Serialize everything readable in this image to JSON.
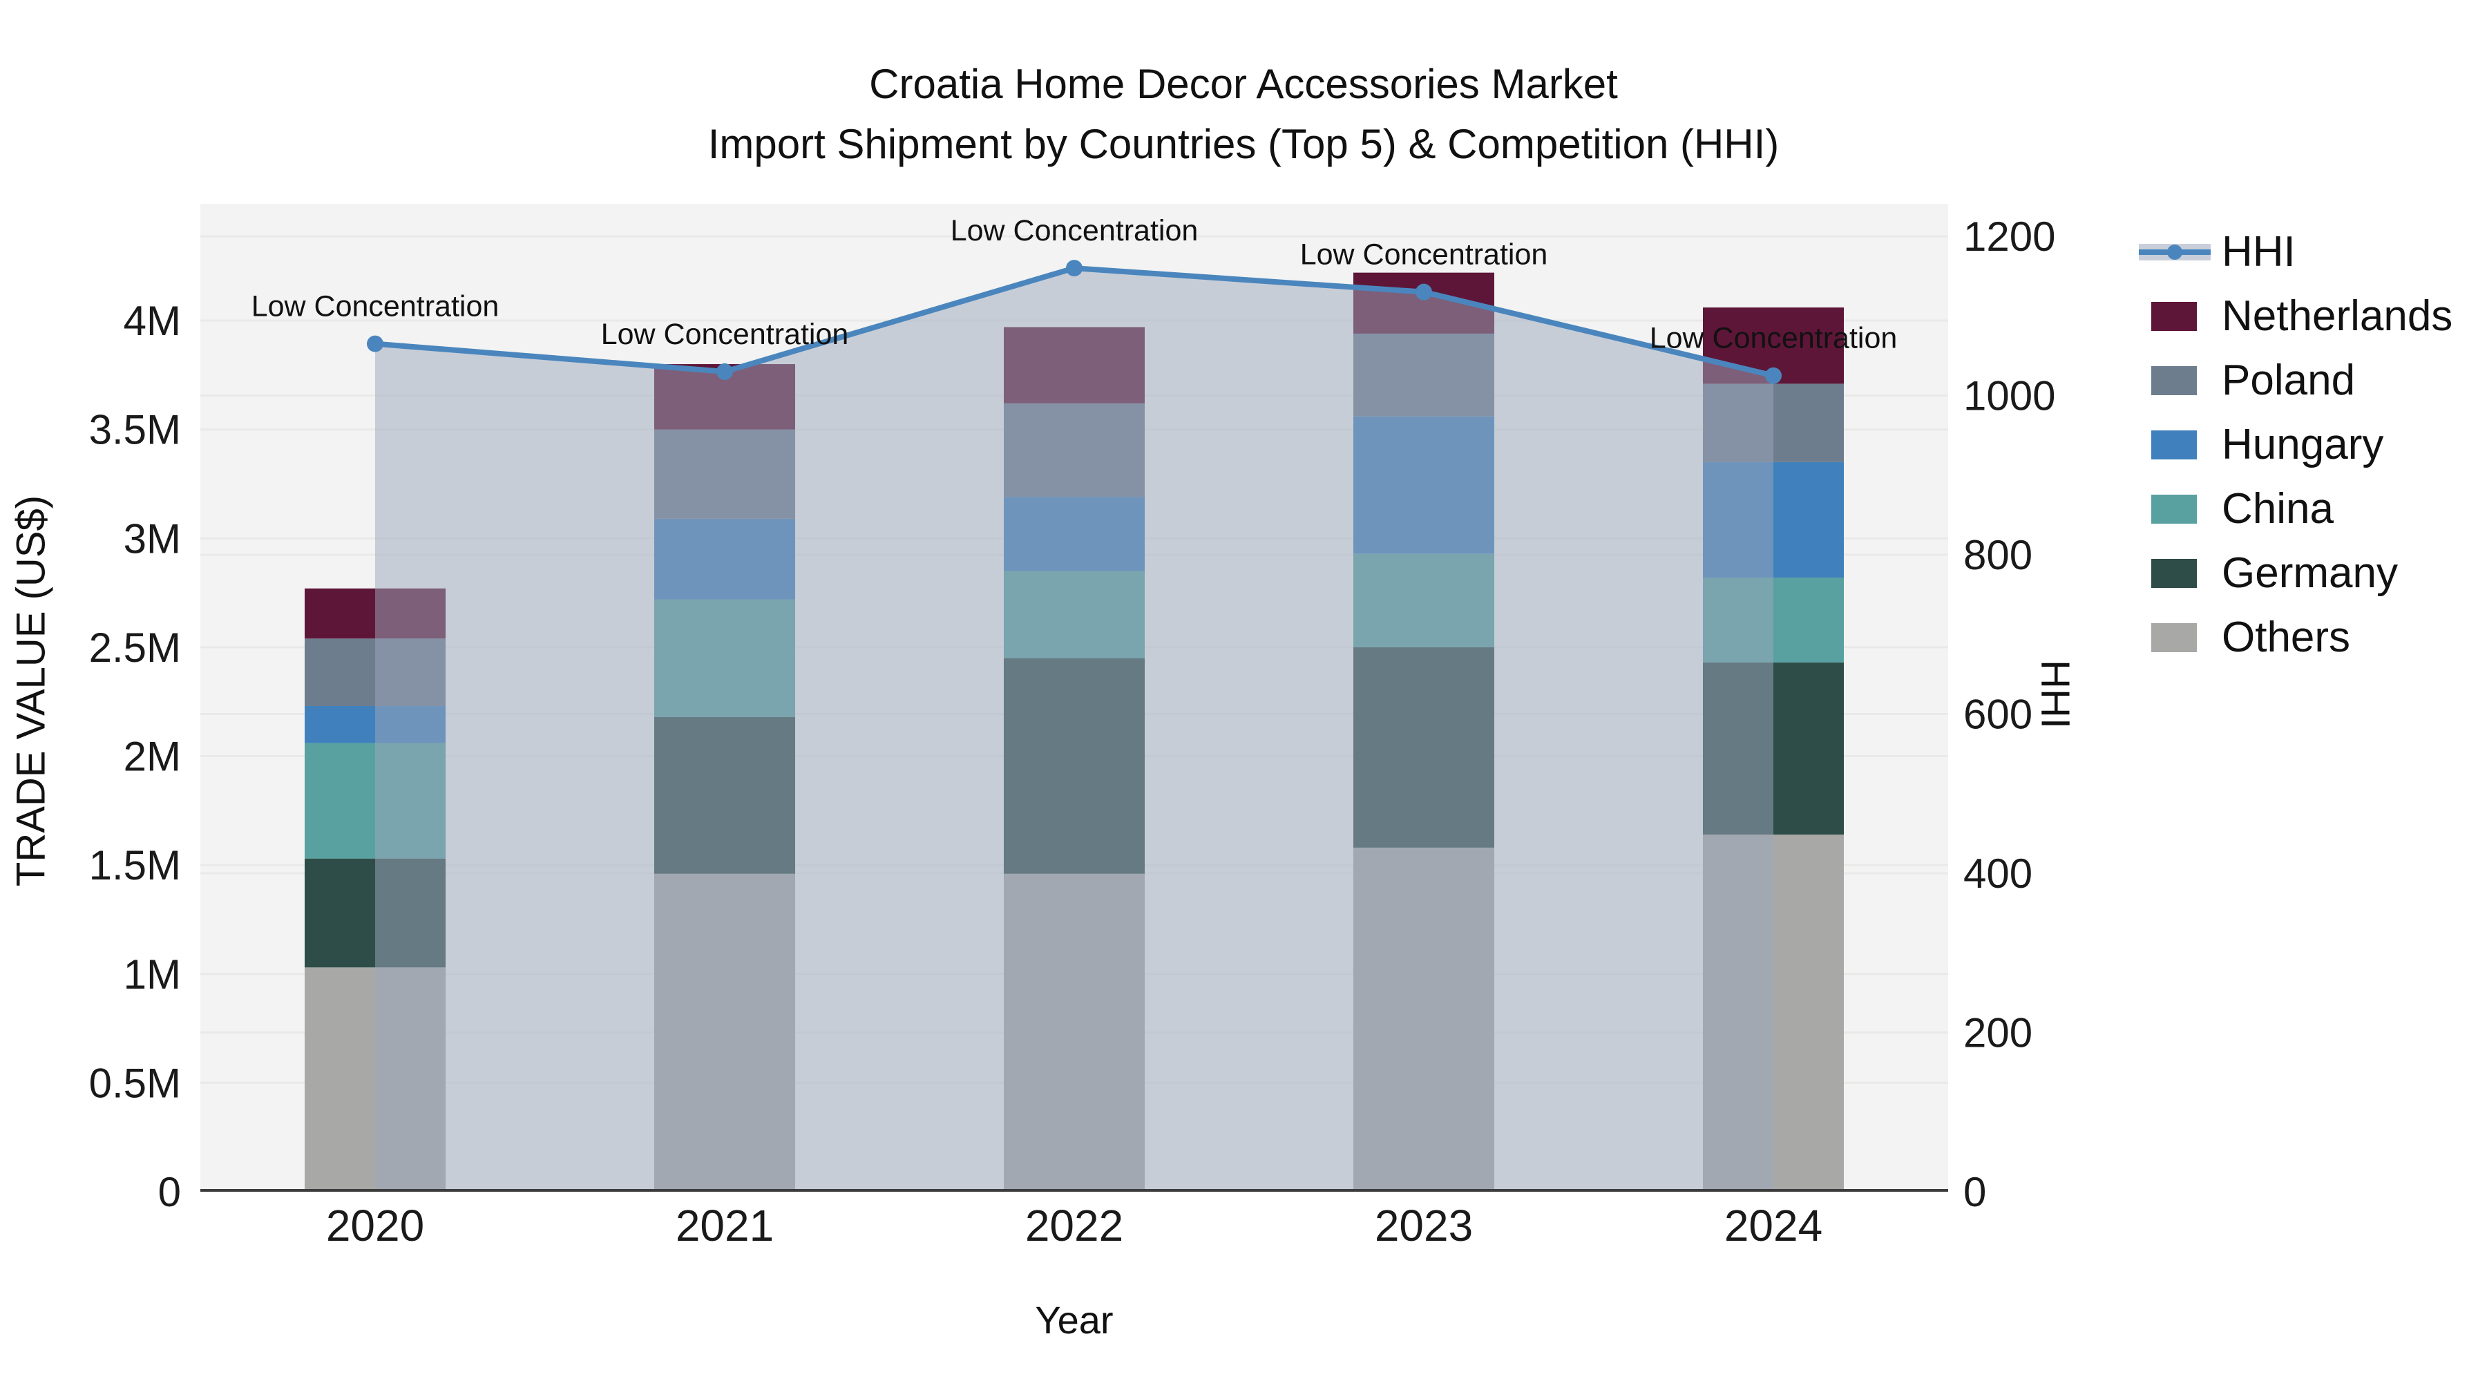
{
  "title": {
    "line1": "Croatia Home Decor Accessories Market",
    "line2": "Import Shipment by Countries (Top 5) & Competition (HHI)"
  },
  "x_axis": {
    "title": "Year",
    "labels": [
      "2020",
      "2021",
      "2022",
      "2023",
      "2024"
    ]
  },
  "y_axis_left": {
    "title": "TRADE VALUE (US$)",
    "ticks": [
      {
        "label": "0",
        "value": 0
      },
      {
        "label": "0.5M",
        "value": 0.5
      },
      {
        "label": "1M",
        "value": 1
      },
      {
        "label": "1.5M",
        "value": 1.5
      },
      {
        "label": "2M",
        "value": 2
      },
      {
        "label": "2.5M",
        "value": 2.5
      },
      {
        "label": "3M",
        "value": 3
      },
      {
        "label": "3.5M",
        "value": 3.5
      },
      {
        "label": "4M",
        "value": 4
      }
    ]
  },
  "y_axis_right": {
    "title": "HHI",
    "ticks": [
      {
        "label": "0",
        "value": 0
      },
      {
        "label": "200",
        "value": 200
      },
      {
        "label": "400",
        "value": 400
      },
      {
        "label": "600",
        "value": 600
      },
      {
        "label": "800",
        "value": 800
      },
      {
        "label": "1000",
        "value": 1000
      },
      {
        "label": "1200",
        "value": 1200
      }
    ]
  },
  "legend": {
    "items": [
      {
        "label": "HHI",
        "type": "line",
        "color": "#4a86bd"
      },
      {
        "label": "Netherlands",
        "type": "swatch",
        "color": "#5e1638"
      },
      {
        "label": "Poland",
        "type": "swatch",
        "color": "#6e7d8e"
      },
      {
        "label": "Hungary",
        "type": "swatch",
        "color": "#4081bd"
      },
      {
        "label": "China",
        "type": "swatch",
        "color": "#59a1a1"
      },
      {
        "label": "Germany",
        "type": "swatch",
        "color": "#2e4d48"
      },
      {
        "label": "Others",
        "type": "swatch",
        "color": "#a8a9a6"
      }
    ]
  },
  "annotation_label": "Low Concentration",
  "chart_data": {
    "type": "combo",
    "subtypes": [
      "stacked-bar",
      "line-with-area"
    ],
    "categories": [
      "2020",
      "2021",
      "2022",
      "2023",
      "2024"
    ],
    "bar_value_unit": "million US$",
    "series": [
      {
        "name": "Others",
        "color": "#a8a9a6",
        "values": [
          1.03,
          1.46,
          1.46,
          1.58,
          1.64
        ]
      },
      {
        "name": "Germany",
        "color": "#2e4d48",
        "values": [
          0.5,
          0.72,
          0.99,
          0.92,
          0.79
        ]
      },
      {
        "name": "China",
        "color": "#59a1a1",
        "values": [
          0.53,
          0.54,
          0.4,
          0.43,
          0.39
        ]
      },
      {
        "name": "Hungary",
        "color": "#4081bd",
        "values": [
          0.17,
          0.37,
          0.34,
          0.63,
          0.53
        ]
      },
      {
        "name": "Poland",
        "color": "#6e7d8e",
        "values": [
          0.31,
          0.41,
          0.43,
          0.38,
          0.36
        ]
      },
      {
        "name": "Netherlands",
        "color": "#5e1638",
        "values": [
          0.23,
          0.3,
          0.35,
          0.28,
          0.35
        ]
      }
    ],
    "bar_totals": [
      2.77,
      3.8,
      3.97,
      4.22,
      4.06
    ],
    "line_series": {
      "name": "HHI",
      "color": "#4a86bd",
      "area_fill": "rgba(155,168,188,0.5)",
      "values": [
        1065,
        1030,
        1160,
        1130,
        1025
      ],
      "point_annotations": [
        "Low Concentration",
        "Low Concentration",
        "Low Concentration",
        "Low Concentration",
        "Low Concentration"
      ]
    },
    "ylim_left": [
      0,
      4.53
    ],
    "ylim_right": [
      0,
      1240
    ],
    "xlabel": "Year",
    "ylabel_left": "TRADE VALUE (US$)",
    "ylabel_right": "HHI",
    "grid": true,
    "legend_position": "right",
    "plot_background": "#f2f3f2",
    "gridline_color": "#e8eae8",
    "axis_line_color": "#3c3c3c"
  }
}
